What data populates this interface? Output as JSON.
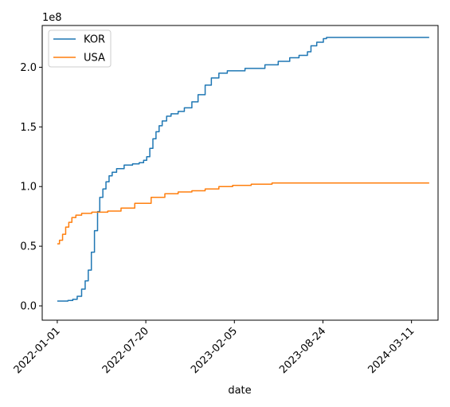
{
  "chart_data": {
    "type": "line",
    "title": "",
    "xlabel": "date",
    "ylabel": "",
    "y_scale_label": "1e8",
    "y_multiplier": 100000000,
    "ylim": [
      -0.12,
      2.35
    ],
    "yticks": [
      0.0,
      0.5,
      1.0,
      1.5,
      2.0
    ],
    "ytick_labels": [
      "0.0",
      "0.5",
      "1.0",
      "1.5",
      "2.0"
    ],
    "xlim": [
      "2021-11-28",
      "2024-05-10"
    ],
    "xticks": [
      "2022-01-01",
      "2022-07-20",
      "2023-02-05",
      "2023-08-24",
      "2024-03-11"
    ],
    "xtick_labels": [
      "2022-01-01",
      "2022-07-20",
      "2023-02-05",
      "2023-08-24",
      "2024-03-11"
    ],
    "legend": {
      "placement": "top-left"
    },
    "grid": false,
    "series": [
      {
        "name": "KOR",
        "color": "#1f77b4",
        "step": true,
        "points": [
          [
            "2022-01-01",
            0.04
          ],
          [
            "2022-01-25",
            0.045
          ],
          [
            "2022-02-05",
            0.055
          ],
          [
            "2022-02-15",
            0.08
          ],
          [
            "2022-02-25",
            0.14
          ],
          [
            "2022-03-05",
            0.21
          ],
          [
            "2022-03-12",
            0.3
          ],
          [
            "2022-03-19",
            0.45
          ],
          [
            "2022-03-26",
            0.63
          ],
          [
            "2022-04-02",
            0.79
          ],
          [
            "2022-04-07",
            0.91
          ],
          [
            "2022-04-14",
            0.98
          ],
          [
            "2022-04-21",
            1.04
          ],
          [
            "2022-04-28",
            1.09
          ],
          [
            "2022-05-05",
            1.12
          ],
          [
            "2022-05-15",
            1.15
          ],
          [
            "2022-06-01",
            1.18
          ],
          [
            "2022-06-20",
            1.19
          ],
          [
            "2022-07-05",
            1.2
          ],
          [
            "2022-07-15",
            1.22
          ],
          [
            "2022-07-22",
            1.25
          ],
          [
            "2022-07-29",
            1.32
          ],
          [
            "2022-08-05",
            1.4
          ],
          [
            "2022-08-12",
            1.46
          ],
          [
            "2022-08-19",
            1.51
          ],
          [
            "2022-08-26",
            1.55
          ],
          [
            "2022-09-05",
            1.59
          ],
          [
            "2022-09-15",
            1.61
          ],
          [
            "2022-10-01",
            1.63
          ],
          [
            "2022-10-15",
            1.66
          ],
          [
            "2022-11-01",
            1.71
          ],
          [
            "2022-11-15",
            1.77
          ],
          [
            "2022-12-01",
            1.85
          ],
          [
            "2022-12-15",
            1.91
          ],
          [
            "2023-01-01",
            1.95
          ],
          [
            "2023-01-20",
            1.97
          ],
          [
            "2023-03-01",
            1.99
          ],
          [
            "2023-04-15",
            2.02
          ],
          [
            "2023-05-15",
            2.05
          ],
          [
            "2023-06-10",
            2.08
          ],
          [
            "2023-07-01",
            2.1
          ],
          [
            "2023-07-20",
            2.13
          ],
          [
            "2023-07-28",
            2.18
          ],
          [
            "2023-08-10",
            2.21
          ],
          [
            "2023-08-25",
            2.24
          ],
          [
            "2023-09-01",
            2.25
          ],
          [
            "2024-04-20",
            2.25
          ]
        ]
      },
      {
        "name": "USA",
        "color": "#ff7f0e",
        "step": true,
        "points": [
          [
            "2022-01-01",
            0.52
          ],
          [
            "2022-01-06",
            0.55
          ],
          [
            "2022-01-13",
            0.6
          ],
          [
            "2022-01-20",
            0.66
          ],
          [
            "2022-01-27",
            0.7
          ],
          [
            "2022-02-03",
            0.74
          ],
          [
            "2022-02-12",
            0.76
          ],
          [
            "2022-02-25",
            0.775
          ],
          [
            "2022-03-20",
            0.785
          ],
          [
            "2022-04-25",
            0.795
          ],
          [
            "2022-05-25",
            0.82
          ],
          [
            "2022-06-25",
            0.86
          ],
          [
            "2022-08-01",
            0.91
          ],
          [
            "2022-09-01",
            0.94
          ],
          [
            "2022-10-01",
            0.955
          ],
          [
            "2022-11-01",
            0.965
          ],
          [
            "2022-12-01",
            0.98
          ],
          [
            "2023-01-01",
            1.0
          ],
          [
            "2023-02-01",
            1.01
          ],
          [
            "2023-03-15",
            1.02
          ],
          [
            "2023-05-01",
            1.03
          ],
          [
            "2023-07-01",
            1.03
          ],
          [
            "2024-04-20",
            1.03
          ]
        ]
      }
    ]
  }
}
